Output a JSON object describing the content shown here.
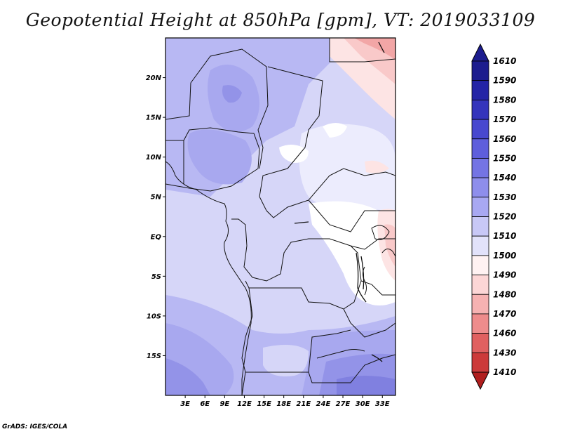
{
  "title": "Geopotential Height at 850hPa [gpm], VT: 2019033109",
  "credit": "GrADS: IGES/COLA",
  "map": {
    "lat_labels": [
      "20N",
      "15N",
      "10N",
      "5N",
      "EQ",
      "5S",
      "10S",
      "15S"
    ],
    "lat_values": [
      20,
      15,
      10,
      5,
      0,
      -5,
      -10,
      -15
    ],
    "lon_labels": [
      "3E",
      "6E",
      "9E",
      "12E",
      "15E",
      "18E",
      "21E",
      "24E",
      "27E",
      "30E",
      "33E"
    ],
    "lon_values": [
      3,
      6,
      9,
      12,
      15,
      18,
      21,
      24,
      27,
      30,
      33
    ],
    "lon_range": [
      0,
      35
    ],
    "lat_range": [
      -20,
      25
    ]
  },
  "colorbar": {
    "labels": [
      "1610",
      "1590",
      "1580",
      "1570",
      "1560",
      "1550",
      "1540",
      "1530",
      "1520",
      "1510",
      "1500",
      "1490",
      "1480",
      "1470",
      "1460",
      "1430",
      "1410"
    ],
    "colors": [
      "#1c1c8e",
      "#2424a6",
      "#3434bc",
      "#4848cf",
      "#5e5edc",
      "#7474e4",
      "#8e8eec",
      "#a8a8f2",
      "#c8c8f6",
      "#e2e2fa",
      "#fff2f2",
      "#fcd6d6",
      "#f6b2b2",
      "#ee8c8c",
      "#e06060",
      "#cc3a3a",
      "#b01e1e"
    ]
  }
}
